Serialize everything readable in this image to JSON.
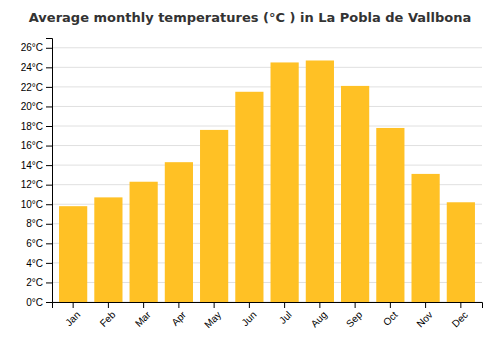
{
  "chart_data": {
    "type": "bar",
    "title": "Average monthly temperatures (°C ) in La Pobla de Vallbona",
    "categories": [
      "Jan",
      "Feb",
      "Mar",
      "Apr",
      "May",
      "Jun",
      "Jul",
      "Aug",
      "Sep",
      "Oct",
      "Nov",
      "Dec"
    ],
    "values": [
      9.8,
      10.7,
      12.3,
      14.3,
      17.6,
      21.5,
      24.5,
      24.7,
      22.1,
      17.8,
      13.1,
      10.2
    ],
    "color": "#FFC125",
    "ylim": [
      0,
      27
    ],
    "yticks": [
      {
        "value": 0,
        "label": "0°C"
      },
      {
        "value": 2,
        "label": "2°C"
      },
      {
        "value": 4,
        "label": "4°C"
      },
      {
        "value": 6,
        "label": "6°C"
      },
      {
        "value": 8,
        "label": "8°C"
      },
      {
        "value": 10,
        "label": "10°C"
      },
      {
        "value": 12,
        "label": "12°C"
      },
      {
        "value": 14,
        "label": "14°C"
      },
      {
        "value": 16,
        "label": "16°C"
      },
      {
        "value": 18,
        "label": "18°C"
      },
      {
        "value": 20,
        "label": "20°C"
      },
      {
        "value": 22,
        "label": "22°C"
      },
      {
        "value": 24,
        "label": "24°C"
      },
      {
        "value": 26,
        "label": "26°C"
      }
    ],
    "grid": true
  }
}
